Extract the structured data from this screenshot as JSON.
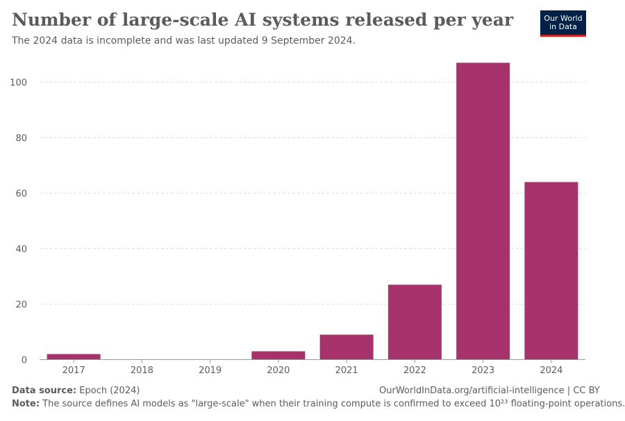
{
  "header": {
    "title": "Number of large-scale AI systems released per year",
    "subtitle": "The 2024 data is incomplete and was last updated 9 September 2024.",
    "logo_line1": "Our World",
    "logo_line2": "in Data"
  },
  "footer": {
    "source_label": "Data source:",
    "source_value": " Epoch (2024)",
    "url": "OurWorldInData.org/artificial-intelligence | CC BY",
    "note_label": "Note:",
    "note_value": " The source defines AI models as \"large-scale\" when their training compute is confirmed to exceed 10²³ floating-point operations."
  },
  "colors": {
    "bar": "#a8326b",
    "grid": "#dddddd",
    "axis": "#999999"
  },
  "chart_data": {
    "type": "bar",
    "title": "Number of large-scale AI systems released per year",
    "xlabel": "",
    "ylabel": "",
    "categories": [
      "2017",
      "2018",
      "2019",
      "2020",
      "2021",
      "2022",
      "2023",
      "2024"
    ],
    "values": [
      2,
      0,
      0,
      3,
      9,
      27,
      107,
      64
    ],
    "ylim": [
      0,
      110
    ],
    "yticks": [
      0,
      20,
      40,
      60,
      80,
      100
    ],
    "grid": "horizontal dashed",
    "legend": "none"
  }
}
